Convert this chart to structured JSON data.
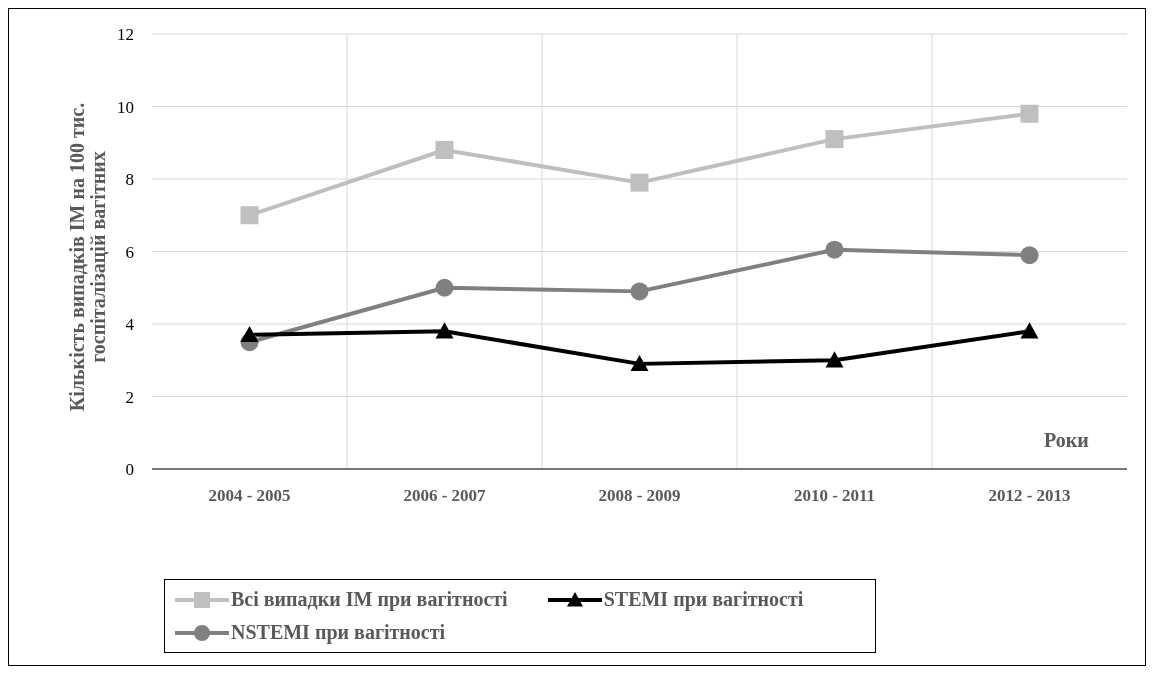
{
  "chart_data": {
    "type": "line",
    "xlabel": "Роки",
    "ylabel": "Кількість випадків ІМ на 100 тис. госпіталізацій вагітних",
    "categories": [
      "2004 - 2005",
      "2006 - 2007",
      "2008 - 2009",
      "2010 - 2011",
      "2012 - 2013"
    ],
    "series": [
      {
        "name": "Всі випадки ІМ при вагітності",
        "color": "#bfbfbf",
        "marker": "square",
        "values": [
          7.0,
          8.8,
          7.9,
          9.1,
          9.8
        ]
      },
      {
        "name": "STEMI при вагітності",
        "color": "#000000",
        "marker": "triangle",
        "values": [
          3.7,
          3.8,
          2.9,
          3.0,
          3.8
        ]
      },
      {
        "name": "NSTEMI при вагітності",
        "color": "#808080",
        "marker": "circle",
        "values": [
          3.5,
          5.0,
          4.9,
          6.05,
          5.9
        ]
      }
    ],
    "ylim": [
      0,
      12
    ],
    "yticks": [
      0,
      2,
      4,
      6,
      8,
      10,
      12
    ],
    "grid": true,
    "legend": "bottom",
    "line_style": "solid"
  }
}
